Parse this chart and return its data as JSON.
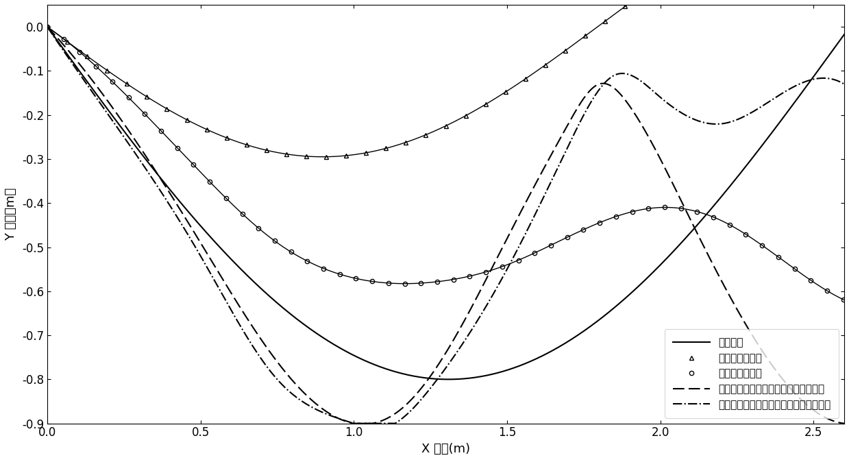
{
  "title": "",
  "xlabel": "X 位置(m)",
  "ylabel": "Y 位置（m）",
  "xlim": [
    0,
    2.6
  ],
  "ylim": [
    -0.9,
    0.05
  ],
  "xticks": [
    0,
    0.5,
    1.0,
    1.5,
    2.0,
    2.5
  ],
  "yticks": [
    0,
    -0.1,
    -0.2,
    -0.3,
    -0.4,
    -0.5,
    -0.6,
    -0.7,
    -0.8,
    -0.9
  ],
  "legend_labels": [
    "目标轨迹",
    "开环无滑转补偿",
    "开环有滑转补偿",
    "有滑转补偿的传统快速双幂次滑模控制",
    "有滑转补偿的自适应快速双幂次滑模控制"
  ],
  "background_color": "#ffffff",
  "line_color": "#000000",
  "ref_omega": 1.2,
  "ref_amp": 0.8
}
